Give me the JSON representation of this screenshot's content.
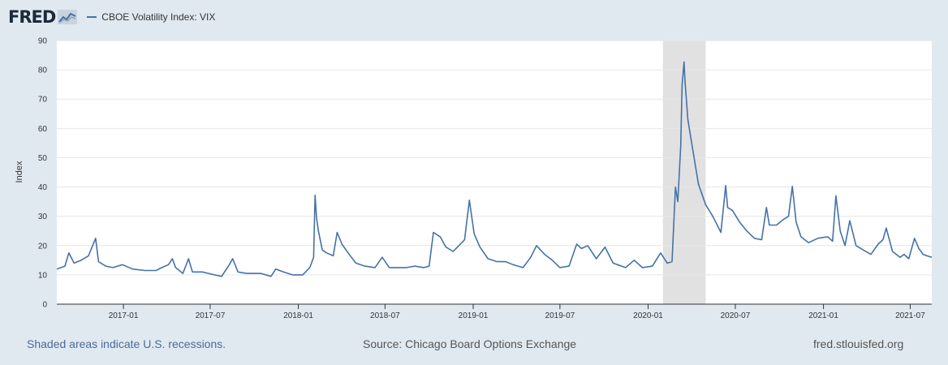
{
  "brand": {
    "logo_text": "FRED"
  },
  "legend": {
    "label": "CBOE Volatility Index: VIX",
    "color": "#4572a7"
  },
  "footer": {
    "recession_note": "Shaded areas indicate U.S. recessions.",
    "source": "Source: Chicago Board Options Exchange",
    "site": "fred.stlouisfed.org"
  },
  "chart_data": {
    "type": "line",
    "title": "",
    "xlabel": "",
    "ylabel": "Index",
    "ylim": [
      0,
      90
    ],
    "yticks": [
      0,
      10,
      20,
      30,
      40,
      50,
      60,
      70,
      80,
      90
    ],
    "xlim": [
      "2016-08-15",
      "2021-08-15"
    ],
    "xticks": [
      "2017-01",
      "2017-07",
      "2018-01",
      "2018-07",
      "2019-01",
      "2019-07",
      "2020-01",
      "2020-07",
      "2021-01",
      "2021-07"
    ],
    "grid": true,
    "recession": {
      "start": "2020-02-01",
      "end": "2020-04-30",
      "color": "#e1e1e1"
    },
    "series": [
      {
        "name": "CBOE Volatility Index: VIX",
        "color": "#4572a7",
        "x": [
          "2016-08-15",
          "2016-09-01",
          "2016-09-09",
          "2016-09-20",
          "2016-10-05",
          "2016-10-20",
          "2016-11-04",
          "2016-11-10",
          "2016-11-25",
          "2016-12-10",
          "2016-12-30",
          "2017-01-20",
          "2017-02-15",
          "2017-03-10",
          "2017-03-22",
          "2017-04-05",
          "2017-04-13",
          "2017-04-20",
          "2017-05-05",
          "2017-05-17",
          "2017-05-25",
          "2017-06-15",
          "2017-07-10",
          "2017-07-25",
          "2017-08-10",
          "2017-08-17",
          "2017-08-28",
          "2017-09-15",
          "2017-10-15",
          "2017-11-05",
          "2017-11-15",
          "2017-12-01",
          "2017-12-20",
          "2018-01-10",
          "2018-01-25",
          "2018-02-02",
          "2018-02-05",
          "2018-02-08",
          "2018-02-12",
          "2018-02-20",
          "2018-03-01",
          "2018-03-15",
          "2018-03-23",
          "2018-04-02",
          "2018-04-15",
          "2018-05-01",
          "2018-05-20",
          "2018-06-10",
          "2018-06-25",
          "2018-07-10",
          "2018-07-25",
          "2018-08-15",
          "2018-09-01",
          "2018-09-20",
          "2018-10-01",
          "2018-10-10",
          "2018-10-24",
          "2018-11-05",
          "2018-11-20",
          "2018-12-05",
          "2018-12-14",
          "2018-12-24",
          "2019-01-03",
          "2019-01-15",
          "2019-02-01",
          "2019-02-20",
          "2019-03-10",
          "2019-03-25",
          "2019-04-15",
          "2019-05-01",
          "2019-05-13",
          "2019-05-30",
          "2019-06-15",
          "2019-07-01",
          "2019-07-20",
          "2019-08-05",
          "2019-08-15",
          "2019-08-28",
          "2019-09-15",
          "2019-10-03",
          "2019-10-20",
          "2019-11-15",
          "2019-12-03",
          "2019-12-20",
          "2020-01-10",
          "2020-01-27",
          "2020-02-10",
          "2020-02-20",
          "2020-02-27",
          "2020-03-03",
          "2020-03-09",
          "2020-03-12",
          "2020-03-16",
          "2020-03-18",
          "2020-03-24",
          "2020-04-01",
          "2020-04-15",
          "2020-04-30",
          "2020-05-15",
          "2020-06-01",
          "2020-06-11",
          "2020-06-15",
          "2020-06-25",
          "2020-07-10",
          "2020-07-25",
          "2020-08-10",
          "2020-08-25",
          "2020-09-04",
          "2020-09-10",
          "2020-09-25",
          "2020-10-10",
          "2020-10-20",
          "2020-10-28",
          "2020-11-05",
          "2020-11-15",
          "2020-12-01",
          "2020-12-20",
          "2021-01-10",
          "2021-01-20",
          "2021-01-27",
          "2021-02-05",
          "2021-02-15",
          "2021-02-25",
          "2021-03-10",
          "2021-03-25",
          "2021-04-10",
          "2021-04-25",
          "2021-05-05",
          "2021-05-12",
          "2021-05-25",
          "2021-06-10",
          "2021-06-18",
          "2021-06-28",
          "2021-07-10",
          "2021-07-19",
          "2021-07-28",
          "2021-08-05",
          "2021-08-15"
        ],
        "values": [
          12,
          13,
          17.5,
          14,
          15,
          16.5,
          22.5,
          14.5,
          13,
          12.5,
          13.5,
          12,
          11.5,
          11.5,
          12.5,
          13.5,
          15.5,
          12.5,
          10.5,
          15.5,
          11,
          11,
          10,
          9.5,
          13.5,
          15.5,
          11,
          10.5,
          10.5,
          9.5,
          12,
          11,
          10,
          10,
          12.5,
          16,
          37.2,
          29.5,
          25,
          18.5,
          17.5,
          16.5,
          24.5,
          20.5,
          17.5,
          14,
          13,
          12.5,
          16,
          12.5,
          12.5,
          12.5,
          13,
          12.5,
          13,
          24.5,
          23,
          19.5,
          18,
          20.5,
          22,
          35.5,
          24,
          19.5,
          15.5,
          14.5,
          14.5,
          13.5,
          12.5,
          16,
          20,
          17,
          15,
          12.5,
          13,
          20.5,
          19,
          20,
          15.5,
          19.5,
          14,
          12.5,
          15,
          12.5,
          13,
          17.5,
          14,
          14.5,
          40,
          35,
          54,
          75,
          82.7,
          76,
          63,
          55,
          41,
          34,
          30,
          24.5,
          40.5,
          33,
          32,
          28,
          25,
          22.5,
          22,
          33,
          27,
          27,
          29,
          30,
          40.2,
          28,
          23,
          21,
          22.5,
          23,
          21.5,
          37,
          25,
          20,
          28.5,
          20,
          18.5,
          17,
          20.5,
          22,
          26,
          18,
          16,
          17,
          15.5,
          22.5,
          19,
          17,
          16.5,
          16
        ]
      }
    ]
  }
}
